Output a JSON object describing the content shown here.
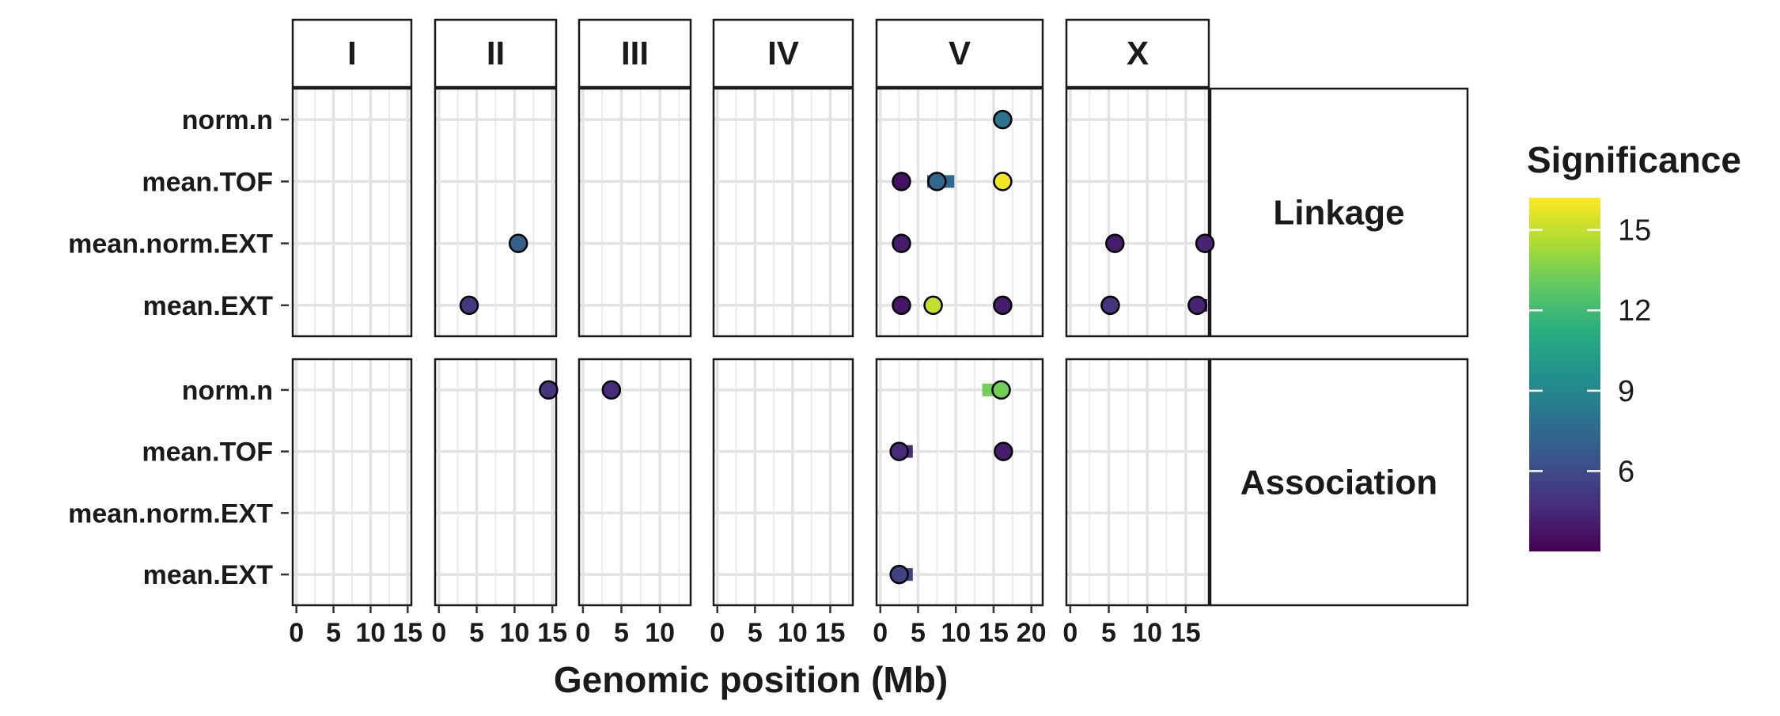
{
  "chart_data": {
    "type": "scatter",
    "xlabel": "Genomic position (Mb)",
    "legend": {
      "title": "Significance",
      "ticks": [
        "6",
        "9",
        "12",
        "15"
      ],
      "tick_values": [
        6,
        9,
        12,
        15
      ],
      "range": [
        3,
        16.2
      ],
      "position": "right"
    },
    "columns": [
      {
        "label": "I",
        "xlim": [
          -0.5,
          15.5
        ],
        "ticks": [
          "0",
          "5",
          "10",
          "15"
        ],
        "tick_values": [
          0,
          5,
          10,
          15
        ]
      },
      {
        "label": "II",
        "xlim": [
          -0.5,
          15.5
        ],
        "ticks": [
          "0",
          "5",
          "10",
          "15"
        ],
        "tick_values": [
          0,
          5,
          10,
          15
        ]
      },
      {
        "label": "III",
        "xlim": [
          -0.5,
          14
        ],
        "ticks": [
          "0",
          "5",
          "10"
        ],
        "tick_values": [
          0,
          5,
          10
        ]
      },
      {
        "label": "IV",
        "xlim": [
          -0.5,
          18
        ],
        "ticks": [
          "0",
          "5",
          "10",
          "15"
        ],
        "tick_values": [
          0,
          5,
          10,
          15
        ]
      },
      {
        "label": "V",
        "xlim": [
          -0.5,
          21.5
        ],
        "ticks": [
          "0",
          "5",
          "10",
          "15",
          "20"
        ],
        "tick_values": [
          0,
          5,
          10,
          15,
          20
        ]
      },
      {
        "label": "X",
        "xlim": [
          -0.5,
          18
        ],
        "ticks": [
          "0",
          "5",
          "10",
          "15"
        ],
        "tick_values": [
          0,
          5,
          10,
          15
        ]
      }
    ],
    "rows": [
      {
        "label": "Linkage",
        "traits": [
          "mean.EXT",
          "mean.norm.EXT",
          "mean.TOF",
          "norm.n"
        ]
      },
      {
        "label": "Association",
        "traits": [
          "mean.EXT",
          "mean.norm.EXT",
          "mean.TOF",
          "norm.n"
        ]
      }
    ],
    "points": [
      {
        "row": "Linkage",
        "col": "II",
        "trait": "mean.norm.EXT",
        "x": 10.5,
        "ci": [
          9.8,
          10.8
        ],
        "significance": 7.0
      },
      {
        "row": "Linkage",
        "col": "II",
        "trait": "mean.EXT",
        "x": 4.0,
        "ci": [
          3.8,
          4.3
        ],
        "significance": 5.2
      },
      {
        "row": "Linkage",
        "col": "V",
        "trait": "norm.n",
        "x": 16.2,
        "ci": [
          16.0,
          16.5
        ],
        "significance": 8.0
      },
      {
        "row": "Linkage",
        "col": "V",
        "trait": "mean.TOF",
        "x": 2.8,
        "ci": [
          2.6,
          3.0
        ],
        "significance": 3.6
      },
      {
        "row": "Linkage",
        "col": "V",
        "trait": "mean.TOF",
        "x": 7.5,
        "ci": [
          6.2,
          9.8
        ],
        "significance": 7.5
      },
      {
        "row": "Linkage",
        "col": "V",
        "trait": "mean.TOF",
        "x": 16.2,
        "ci": [
          16.0,
          16.5
        ],
        "significance": 16.0
      },
      {
        "row": "Linkage",
        "col": "V",
        "trait": "mean.norm.EXT",
        "x": 2.8,
        "ci": [
          2.6,
          3.0
        ],
        "significance": 4.0
      },
      {
        "row": "Linkage",
        "col": "V",
        "trait": "mean.EXT",
        "x": 2.8,
        "ci": [
          2.6,
          3.0
        ],
        "significance": 3.8
      },
      {
        "row": "Linkage",
        "col": "V",
        "trait": "mean.EXT",
        "x": 7.0,
        "ci": [
          6.8,
          7.3
        ],
        "significance": 15.0
      },
      {
        "row": "Linkage",
        "col": "V",
        "trait": "mean.EXT",
        "x": 16.2,
        "ci": [
          16.0,
          16.5
        ],
        "significance": 4.0
      },
      {
        "row": "Linkage",
        "col": "X",
        "trait": "mean.norm.EXT",
        "x": 5.8,
        "ci": [
          5.0,
          6.8
        ],
        "significance": 4.0
      },
      {
        "row": "Linkage",
        "col": "X",
        "trait": "mean.norm.EXT",
        "x": 17.5,
        "ci": [
          16.5,
          17.9
        ],
        "significance": 4.3
      },
      {
        "row": "Linkage",
        "col": "X",
        "trait": "mean.EXT",
        "x": 5.2,
        "ci": [
          5.0,
          5.5
        ],
        "significance": 5.0
      },
      {
        "row": "Linkage",
        "col": "X",
        "trait": "mean.EXT",
        "x": 16.5,
        "ci": [
          16.2,
          17.8
        ],
        "significance": 4.3
      },
      {
        "row": "Association",
        "col": "II",
        "trait": "norm.n",
        "x": 14.5,
        "ci": [
          14.3,
          14.8
        ],
        "significance": 5.0
      },
      {
        "row": "Association",
        "col": "III",
        "trait": "norm.n",
        "x": 3.7,
        "ci": [
          3.0,
          4.2
        ],
        "significance": 4.6
      },
      {
        "row": "Association",
        "col": "V",
        "trait": "norm.n",
        "x": 16.0,
        "ci": [
          13.5,
          16.4
        ],
        "significance": 13.3
      },
      {
        "row": "Association",
        "col": "V",
        "trait": "mean.TOF",
        "x": 2.5,
        "ci": [
          2.3,
          4.3
        ],
        "significance": 4.6
      },
      {
        "row": "Association",
        "col": "V",
        "trait": "mean.TOF",
        "x": 16.3,
        "ci": [
          16.1,
          16.5
        ],
        "significance": 4.0
      },
      {
        "row": "Association",
        "col": "V",
        "trait": "mean.EXT",
        "x": 2.5,
        "ci": [
          2.3,
          4.3
        ],
        "significance": 5.6
      }
    ]
  }
}
